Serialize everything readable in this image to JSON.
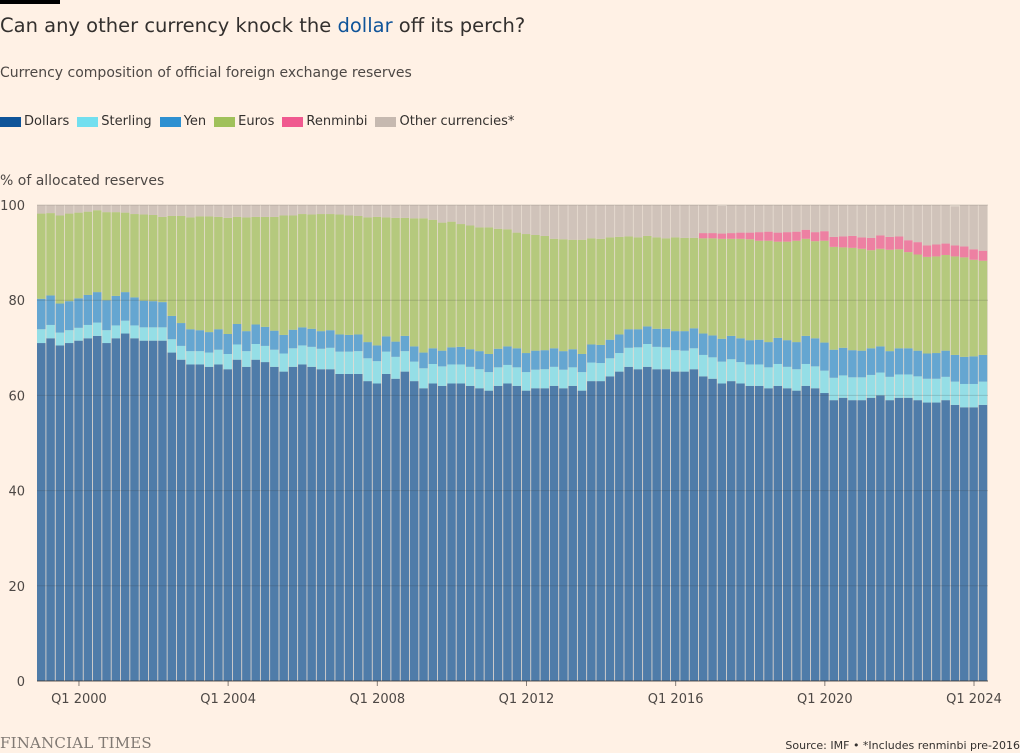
{
  "header": {
    "title_before": "Can any other currency knock the ",
    "title_highlight": "dollar",
    "title_after": " off its perch?",
    "subtitle": "Currency composition of official foreign exchange reserves"
  },
  "legend": [
    {
      "label": "Dollars",
      "color": "#0f5499"
    },
    {
      "label": "Sterling",
      "color": "#72dfef"
    },
    {
      "label": "Yen",
      "color": "#2e90d1"
    },
    {
      "label": "Euros",
      "color": "#a0c15a"
    },
    {
      "label": "Renminbi",
      "color": "#f0598f"
    },
    {
      "label": "Other currencies*",
      "color": "#c6b9b0"
    }
  ],
  "footer": {
    "brand": "FINANCIAL TIMES",
    "source": "Source: IMF • *Includes renminbi pre-2016"
  },
  "chart_data": {
    "type": "stacked-bar",
    "ylabel": "% of allocated reserves",
    "ylim": [
      0,
      100
    ],
    "yticks": [
      0,
      20,
      40,
      60,
      80,
      100
    ],
    "xtick_labels": [
      "Q1 2000",
      "Q1 2004",
      "Q1 2008",
      "Q1 2012",
      "Q1 2016",
      "Q1 2020",
      "Q1 2024"
    ],
    "first_period": "Q1 1999",
    "last_period": "Q2 2024",
    "grid": true,
    "series_order": [
      "Dollars",
      "Sterling",
      "Yen",
      "Euros",
      "Renminbi",
      "Other currencies*"
    ],
    "series": [
      {
        "name": "Dollars",
        "color": "#0f5499",
        "values": [
          71.0,
          72.0,
          70.5,
          71.0,
          71.5,
          72.0,
          72.5,
          71.0,
          72.0,
          73.0,
          72.0,
          71.5,
          71.5,
          71.5,
          69.0,
          67.5,
          66.5,
          66.5,
          66.0,
          66.5,
          65.5,
          67.5,
          66.0,
          67.5,
          67.0,
          66.0,
          65.0,
          66.0,
          66.5,
          66.0,
          65.5,
          65.5,
          64.5,
          64.5,
          64.5,
          63.0,
          62.5,
          64.5,
          63.5,
          65.0,
          63.0,
          61.5,
          62.5,
          62.0,
          62.5,
          62.5,
          62.0,
          61.5,
          61.0,
          62.0,
          62.5,
          62.0,
          61.0,
          61.5,
          61.5,
          62.0,
          61.5,
          62.0,
          61.0,
          63.0,
          63.0,
          64.0,
          65.0,
          66.0,
          65.5,
          66.0,
          65.5,
          65.5,
          65.0,
          65.0,
          65.5,
          64.0,
          63.5,
          62.5,
          63.0,
          62.5,
          62.0,
          62.0,
          61.5,
          62.0,
          61.5,
          61.0,
          62.0,
          61.5,
          60.5,
          59.0,
          59.5,
          59.0,
          59.0,
          59.5,
          60.0,
          59.0,
          59.5,
          59.5,
          59.0,
          58.5,
          58.5,
          59.0,
          58.0,
          57.5,
          57.5,
          58.0
        ]
      },
      {
        "name": "Sterling",
        "color": "#72dfef",
        "values": [
          2.9,
          2.8,
          2.7,
          2.7,
          2.7,
          2.8,
          2.8,
          2.7,
          2.7,
          2.7,
          2.7,
          2.8,
          2.8,
          2.8,
          2.8,
          2.9,
          2.8,
          2.8,
          3.0,
          3.1,
          3.2,
          3.2,
          3.3,
          3.3,
          3.4,
          3.6,
          3.8,
          3.9,
          4.0,
          4.2,
          4.3,
          4.5,
          4.7,
          4.7,
          4.8,
          4.8,
          4.7,
          4.7,
          4.6,
          4.3,
          4.1,
          4.2,
          4.1,
          4.1,
          4.0,
          4.0,
          4.0,
          4.0,
          3.9,
          3.9,
          3.9,
          3.9,
          3.9,
          3.9,
          4.0,
          4.0,
          3.9,
          3.9,
          3.9,
          3.9,
          3.8,
          3.8,
          3.9,
          4.0,
          4.6,
          4.8,
          4.7,
          4.6,
          4.5,
          4.4,
          4.4,
          4.5,
          4.5,
          4.6,
          4.6,
          4.5,
          4.5,
          4.5,
          4.4,
          4.6,
          4.5,
          4.5,
          4.6,
          4.6,
          4.7,
          4.7,
          4.7,
          4.8,
          4.8,
          4.8,
          4.8,
          4.9,
          4.9,
          4.9,
          5.0,
          5.0,
          5.0,
          4.9,
          4.9,
          4.9,
          4.9,
          4.9
        ]
      },
      {
        "name": "Yen",
        "color": "#2e90d1",
        "values": [
          6.4,
          6.2,
          6.1,
          6.1,
          6.2,
          6.3,
          6.4,
          6.3,
          6.2,
          6.0,
          5.9,
          5.6,
          5.5,
          5.3,
          4.9,
          4.8,
          4.6,
          4.4,
          4.3,
          4.3,
          4.2,
          4.3,
          4.2,
          4.1,
          4.0,
          4.0,
          3.9,
          3.9,
          3.8,
          3.8,
          3.7,
          3.7,
          3.6,
          3.5,
          3.5,
          3.4,
          3.3,
          3.2,
          3.2,
          3.2,
          3.2,
          3.3,
          3.3,
          3.3,
          3.6,
          3.7,
          3.7,
          3.8,
          3.8,
          3.9,
          3.9,
          4.0,
          4.0,
          4.0,
          4.0,
          3.9,
          3.9,
          3.8,
          3.8,
          3.8,
          3.8,
          3.9,
          3.9,
          3.9,
          3.8,
          3.7,
          3.8,
          3.9,
          4.0,
          4.1,
          4.2,
          4.5,
          4.6,
          4.8,
          4.9,
          5.0,
          5.1,
          5.2,
          5.3,
          5.5,
          5.6,
          5.7,
          5.9,
          5.9,
          5.9,
          5.9,
          5.8,
          5.7,
          5.6,
          5.6,
          5.5,
          5.4,
          5.5,
          5.5,
          5.4,
          5.3,
          5.4,
          5.5,
          5.6,
          5.7,
          5.8,
          5.6
        ]
      },
      {
        "name": "Euros",
        "color": "#a0c15a",
        "values": [
          17.9,
          17.3,
          18.5,
          18.4,
          18.0,
          17.5,
          17.2,
          18.5,
          17.6,
          16.7,
          17.5,
          18.1,
          18.1,
          17.9,
          21.0,
          22.5,
          23.5,
          23.9,
          24.3,
          23.6,
          24.4,
          22.5,
          23.9,
          22.6,
          23.1,
          23.9,
          25.1,
          24.0,
          23.8,
          24.0,
          24.6,
          24.4,
          25.2,
          25.1,
          24.9,
          26.2,
          27.0,
          25.0,
          26.0,
          24.8,
          26.9,
          28.2,
          27.0,
          26.9,
          26.4,
          25.8,
          26.0,
          26.0,
          26.6,
          25.2,
          24.6,
          24.3,
          25.0,
          24.3,
          24.0,
          23.0,
          23.5,
          23.0,
          24.0,
          22.3,
          22.3,
          21.5,
          20.5,
          19.5,
          19.3,
          19.0,
          19.2,
          19.0,
          19.7,
          19.6,
          19.0,
          20.0,
          20.4,
          21.0,
          20.4,
          20.9,
          21.2,
          20.8,
          21.3,
          20.2,
          20.7,
          21.3,
          20.4,
          20.4,
          21.4,
          21.6,
          21.1,
          21.5,
          21.4,
          20.6,
          20.5,
          21.3,
          20.8,
          20.2,
          20.2,
          20.3,
          20.3,
          20.1,
          20.7,
          20.9,
          20.3,
          19.8
        ]
      },
      {
        "name": "Renminbi",
        "color": "#f0598f",
        "values": [
          0,
          0,
          0,
          0,
          0,
          0,
          0,
          0,
          0,
          0,
          0,
          0,
          0,
          0,
          0,
          0,
          0,
          0,
          0,
          0,
          0,
          0,
          0,
          0,
          0,
          0,
          0,
          0,
          0,
          0,
          0,
          0,
          0,
          0,
          0,
          0,
          0,
          0,
          0,
          0,
          0,
          0,
          0,
          0,
          0,
          0,
          0,
          0,
          0,
          0,
          0,
          0,
          0,
          0,
          0,
          0,
          0,
          0,
          0,
          0,
          0,
          0,
          0,
          0,
          0,
          0,
          0,
          0,
          0,
          0,
          0,
          1.1,
          1.1,
          1.1,
          1.2,
          1.3,
          1.4,
          1.8,
          1.9,
          1.9,
          2.0,
          1.9,
          1.9,
          1.9,
          2.0,
          2.1,
          2.3,
          2.5,
          2.4,
          2.6,
          2.8,
          2.7,
          2.7,
          2.5,
          2.6,
          2.4,
          2.5,
          2.4,
          2.3,
          2.3,
          2.2,
          2.1
        ]
      },
      {
        "name": "Other currencies*",
        "color": "#c6b9b0",
        "values": [
          1.8,
          1.7,
          2.2,
          1.8,
          1.6,
          1.4,
          1.1,
          1.5,
          1.5,
          1.6,
          1.9,
          2.0,
          2.1,
          2.5,
          2.3,
          2.3,
          2.6,
          2.4,
          2.4,
          2.5,
          2.7,
          2.5,
          2.6,
          2.5,
          2.5,
          2.5,
          2.2,
          2.2,
          1.9,
          2.0,
          1.9,
          1.9,
          2.0,
          2.2,
          2.3,
          2.6,
          2.5,
          2.6,
          2.7,
          2.7,
          2.8,
          2.8,
          3.1,
          3.7,
          3.5,
          4.0,
          4.3,
          4.7,
          4.7,
          5.0,
          5.1,
          5.8,
          6.1,
          6.3,
          6.5,
          7.1,
          7.2,
          7.3,
          7.3,
          7.0,
          7.1,
          6.8,
          6.7,
          6.6,
          6.8,
          6.5,
          6.8,
          7.0,
          6.8,
          6.9,
          6.9,
          5.9,
          5.9,
          5.8,
          5.9,
          5.8,
          5.8,
          5.7,
          5.6,
          5.8,
          5.7,
          5.6,
          5.2,
          5.7,
          5.5,
          6.7,
          6.6,
          6.5,
          6.8,
          6.9,
          6.4,
          6.7,
          6.6,
          7.4,
          7.8,
          8.5,
          8.3,
          8.1,
          8.2,
          8.7,
          9.3,
          9.6
        ]
      }
    ]
  }
}
